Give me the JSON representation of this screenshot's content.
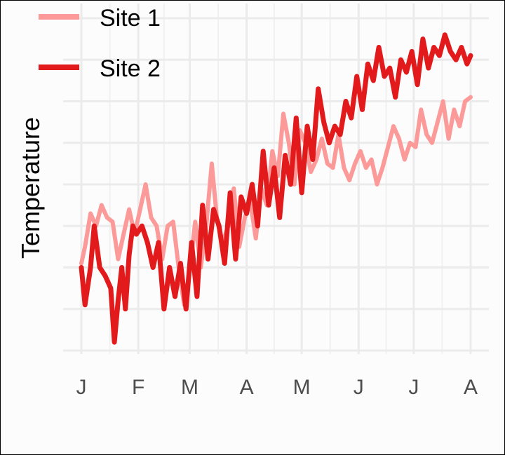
{
  "chart_data": {
    "type": "line",
    "title": "",
    "xlabel": "",
    "ylabel": "Temperature",
    "x_ticks": [
      {
        "label": "J",
        "value": 1
      },
      {
        "label": "F",
        "value": 32
      },
      {
        "label": "M",
        "value": 60
      },
      {
        "label": "A",
        "value": 91
      },
      {
        "label": "M",
        "value": 121
      },
      {
        "label": "J",
        "value": 152
      },
      {
        "label": "J",
        "value": 182
      },
      {
        "label": "A",
        "value": 213
      }
    ],
    "xlim": [
      1,
      213
    ],
    "ylim": [
      0,
      8
    ],
    "y_tick_labels_shown": false,
    "grid": true,
    "legend": {
      "placement": "top-left"
    },
    "series": [
      {
        "name": "Site 1",
        "color": "#fb9a99",
        "x": [
          1,
          3,
          6,
          9,
          12,
          15,
          18,
          21,
          24,
          27,
          30,
          33,
          36,
          39,
          42,
          45,
          48,
          51,
          54,
          57,
          60,
          63,
          66,
          69,
          72,
          75,
          78,
          81,
          84,
          87,
          90,
          93,
          96,
          99,
          102,
          105,
          108,
          111,
          114,
          117,
          120,
          123,
          126,
          129,
          132,
          135,
          138,
          141,
          144,
          147,
          150,
          153,
          156,
          159,
          162,
          165,
          168,
          171,
          174,
          177,
          180,
          183,
          186,
          189,
          192,
          195,
          198,
          201,
          204,
          207,
          210,
          213
        ],
        "y": [
          2.1,
          2.5,
          3.3,
          3.0,
          3.5,
          3.2,
          3.1,
          2.2,
          2.8,
          3.4,
          2.8,
          3.4,
          4.0,
          3.2,
          3.0,
          2.2,
          3.0,
          3.1,
          2.0,
          1.1,
          1.9,
          3.1,
          2.0,
          3.0,
          4.5,
          3.1,
          2.6,
          3.0,
          3.9,
          2.5,
          3.2,
          3.6,
          2.7,
          3.9,
          3.5,
          4.8,
          4.2,
          5.7,
          5.0,
          4.0,
          5.3,
          5.0,
          4.3,
          4.6,
          5.1,
          4.5,
          4.4,
          5.2,
          4.4,
          4.1,
          4.5,
          4.8,
          4.4,
          4.6,
          4.0,
          4.4,
          4.9,
          5.4,
          5.1,
          4.6,
          5.0,
          4.9,
          5.8,
          5.2,
          5.0,
          5.5,
          6.0,
          5.1,
          5.8,
          5.4,
          6.0,
          6.1
        ]
      },
      {
        "name": "Site 2",
        "color": "#e31a1c",
        "x": [
          1,
          3,
          6,
          8,
          11,
          14,
          17,
          19,
          21,
          23,
          25,
          27,
          29,
          31,
          34,
          37,
          40,
          43,
          46,
          49,
          52,
          55,
          58,
          61,
          64,
          67,
          70,
          73,
          76,
          79,
          82,
          85,
          88,
          91,
          94,
          97,
          100,
          103,
          106,
          109,
          112,
          115,
          118,
          121,
          124,
          127,
          130,
          133,
          136,
          139,
          142,
          145,
          148,
          151,
          154,
          157,
          160,
          163,
          166,
          169,
          172,
          175,
          178,
          181,
          184,
          187,
          190,
          193,
          196,
          199,
          202,
          205,
          208,
          211,
          213
        ],
        "y": [
          2.0,
          1.1,
          2.0,
          3.0,
          2.0,
          1.8,
          1.5,
          0.2,
          1.2,
          2.0,
          1.0,
          2.3,
          3.0,
          2.8,
          3.0,
          2.6,
          2.0,
          2.6,
          1.0,
          2.0,
          1.3,
          2.1,
          1.0,
          2.6,
          1.3,
          3.5,
          2.2,
          3.4,
          3.0,
          2.1,
          3.8,
          2.2,
          3.7,
          3.3,
          4.0,
          3.0,
          4.8,
          3.5,
          4.4,
          3.2,
          4.7,
          4.0,
          5.6,
          3.8,
          5.4,
          4.6,
          6.3,
          5.5,
          5.0,
          5.4,
          5.2,
          6.0,
          5.6,
          6.6,
          5.8,
          6.9,
          6.5,
          7.3,
          6.6,
          6.8,
          6.1,
          7.0,
          6.7,
          7.2,
          6.4,
          7.5,
          6.8,
          7.3,
          7.1,
          7.6,
          7.2,
          7.0,
          7.3,
          6.9,
          7.1
        ]
      }
    ]
  }
}
